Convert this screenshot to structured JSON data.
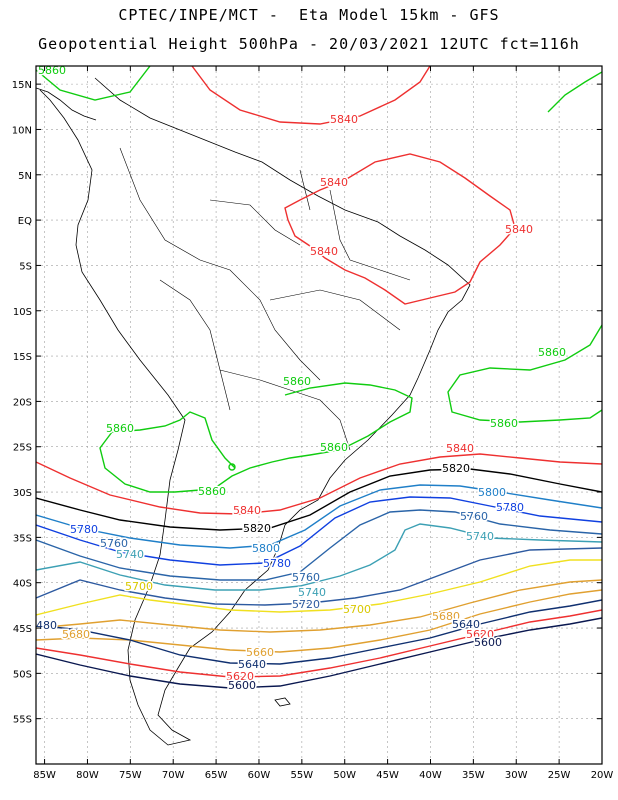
{
  "title_line1": "CPTEC/INPE/MCT -  Eta Model 15km - GFS",
  "title_line2": "Geopotential Height 500hPa - 20/03/2021 12UTC fct=116h",
  "map": {
    "lon_range": [
      -86,
      -20
    ],
    "lat_range": [
      -60,
      17
    ],
    "lon_ticks": [
      "85W",
      "80W",
      "75W",
      "70W",
      "65W",
      "60W",
      "55W",
      "50W",
      "45W",
      "40W",
      "35W",
      "30W",
      "25W",
      "20W"
    ],
    "lat_ticks": [
      "15N",
      "10N",
      "5N",
      "EQ",
      "5S",
      "10S",
      "15S",
      "20S",
      "25S",
      "30S",
      "35S",
      "40S",
      "45S",
      "50S",
      "55S"
    ]
  },
  "contours": [
    {
      "value": "5860",
      "color": "#10cc10"
    },
    {
      "value": "5840",
      "color": "#ee3030"
    },
    {
      "value": "5820",
      "color": "#000000"
    },
    {
      "value": "5800",
      "color": "#1f7fc8"
    },
    {
      "value": "5780",
      "color": "#1040e0"
    },
    {
      "value": "5760",
      "color": "#2a64a8"
    },
    {
      "value": "5740",
      "color": "#3ca0b4"
    },
    {
      "value": "5720",
      "color": "#2d5aa0"
    },
    {
      "value": "5700",
      "color": "#f0e020"
    },
    {
      "value": "5680",
      "color": "#e0a030"
    },
    {
      "value": "5660",
      "color": "#e0a030"
    },
    {
      "value": "5640",
      "color": "#103070"
    },
    {
      "value": "5620",
      "color": "#ee3030"
    },
    {
      "value": "5600",
      "color": "#0a1850"
    },
    {
      "value": "480",
      "color": "#103070"
    }
  ],
  "contour_labels": [
    {
      "text": "5860",
      "color": "#10cc10"
    },
    {
      "text": "5840",
      "color": "#ee3030"
    },
    {
      "text": "5840",
      "color": "#ee3030"
    },
    {
      "text": "5840",
      "color": "#ee3030"
    },
    {
      "text": "5840",
      "color": "#ee3030"
    },
    {
      "text": "5860",
      "color": "#10cc10"
    },
    {
      "text": "5860",
      "color": "#10cc10"
    },
    {
      "text": "5860",
      "color": "#10cc10"
    },
    {
      "text": "5860",
      "color": "#10cc10"
    },
    {
      "text": "5860",
      "color": "#10cc10"
    },
    {
      "text": "5860",
      "color": "#10cc10"
    },
    {
      "text": "5840",
      "color": "#ee3030"
    },
    {
      "text": "5840",
      "color": "#ee3030"
    },
    {
      "text": "5820",
      "color": "#000000"
    },
    {
      "text": "5820",
      "color": "#000000"
    },
    {
      "text": "5800",
      "color": "#1f7fc8"
    },
    {
      "text": "5800",
      "color": "#1f7fc8"
    },
    {
      "text": "5780",
      "color": "#1040e0"
    },
    {
      "text": "5780",
      "color": "#1040e0"
    },
    {
      "text": "5780",
      "color": "#1040e0"
    },
    {
      "text": "5760",
      "color": "#2a64a8"
    },
    {
      "text": "5760",
      "color": "#2a64a8"
    },
    {
      "text": "5760",
      "color": "#2a64a8"
    },
    {
      "text": "5740",
      "color": "#3ca0b4"
    },
    {
      "text": "5740",
      "color": "#3ca0b4"
    },
    {
      "text": "5740",
      "color": "#3ca0b4"
    },
    {
      "text": "5720",
      "color": "#2d5aa0"
    },
    {
      "text": "5700",
      "color": "#d8c800"
    },
    {
      "text": "5700",
      "color": "#d8c800"
    },
    {
      "text": "5680",
      "color": "#e0a030"
    },
    {
      "text": "5680",
      "color": "#e0a030"
    },
    {
      "text": "5660",
      "color": "#e0a030"
    },
    {
      "text": "5640",
      "color": "#103070"
    },
    {
      "text": "5640",
      "color": "#103070"
    },
    {
      "text": "5620",
      "color": "#ee3030"
    },
    {
      "text": "5620",
      "color": "#ee3030"
    },
    {
      "text": "5600",
      "color": "#0a1850"
    },
    {
      "text": "5600",
      "color": "#0a1850"
    },
    {
      "text": "480",
      "color": "#103070"
    }
  ]
}
